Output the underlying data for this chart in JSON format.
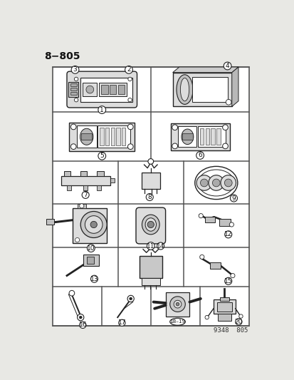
{
  "title": "8−805",
  "footer": "9348  805",
  "bg_color": "#e8e8e4",
  "border_color": "#555555",
  "line_color": "#222222",
  "white": "#ffffff",
  "light_gray": "#dddddd",
  "mid_gray": "#bbbbbb"
}
